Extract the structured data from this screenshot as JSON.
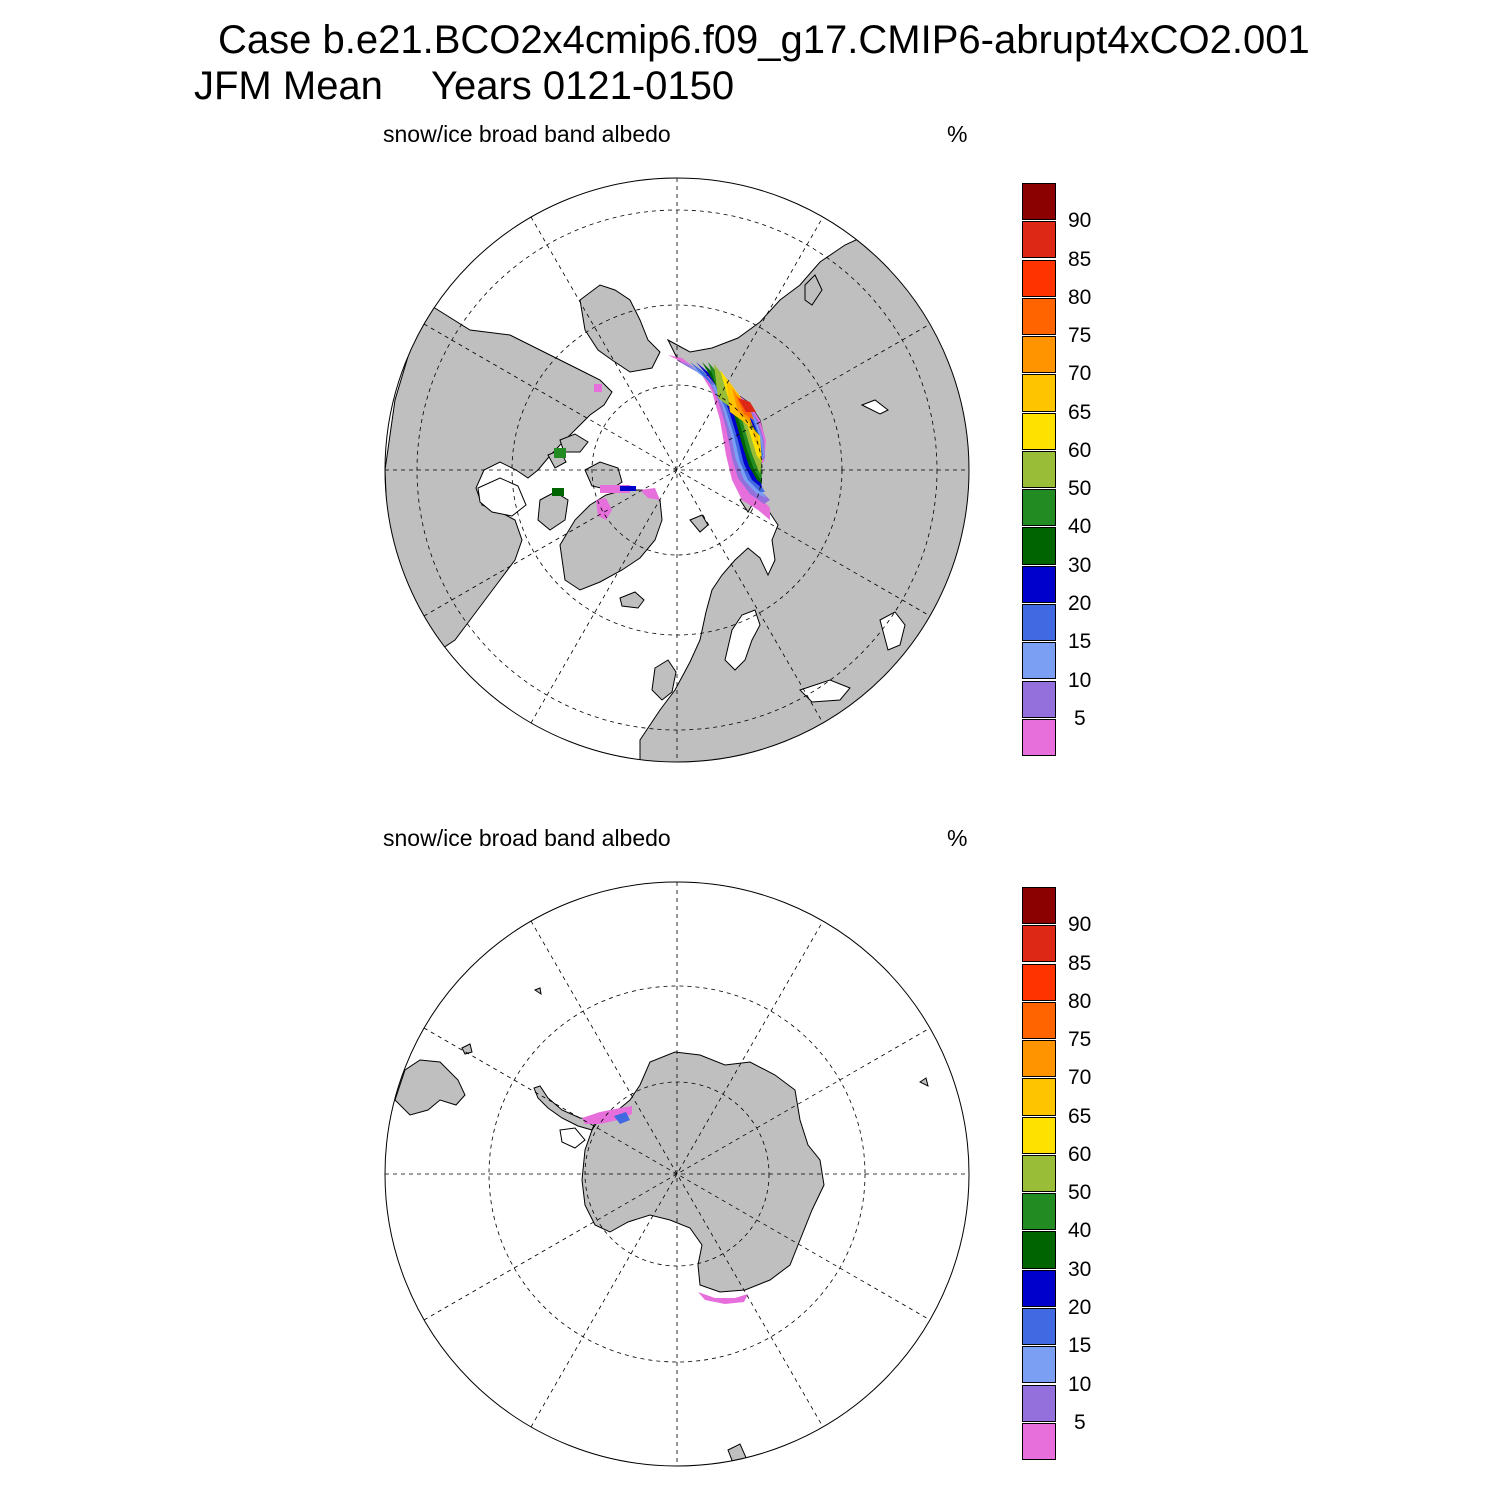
{
  "header": {
    "case_line": "Case b.e21.BCO2x4cmip6.f09_g17.CMIP6-abrupt4xCO2.001",
    "season": "JFM Mean",
    "years": "Years 0121-0150"
  },
  "colors": {
    "land": "#bfbfbf",
    "ocean": "#ffffff",
    "coast": "#000000"
  },
  "colorbar": {
    "levels": [
      "5",
      "10",
      "15",
      "20",
      "30",
      "40",
      "50",
      "60",
      "65",
      "70",
      "75",
      "80",
      "85",
      "90"
    ],
    "colors": [
      "#e66fdc",
      "#9370db",
      "#7b9ff2",
      "#4169e1",
      "#0000cd",
      "#006400",
      "#228b22",
      "#9abd37",
      "#ffe100",
      "#ffc400",
      "#ff9400",
      "#ff6400",
      "#ff3300",
      "#dc2814",
      "#8b0000"
    ]
  },
  "panels": [
    {
      "id": "north",
      "title": "snow/ice broad band albedo",
      "units": "%",
      "hemisphere": "Northern Hemisphere"
    },
    {
      "id": "south",
      "title": "snow/ice broad band albedo",
      "units": "%",
      "hemisphere": "Southern Hemisphere"
    }
  ]
}
